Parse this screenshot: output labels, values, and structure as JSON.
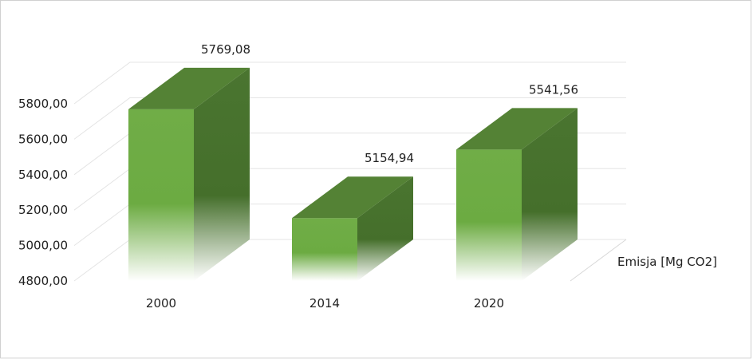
{
  "chart_data": {
    "type": "bar",
    "title": "",
    "xlabel": "",
    "ylabel": "",
    "categories": [
      "2000",
      "2014",
      "2020"
    ],
    "series": [
      {
        "name": "Emisja [Mg CO2]",
        "values": [
          5769.08,
          5154.94,
          5541.56
        ]
      }
    ],
    "value_labels": [
      "5769,08",
      "5154,94",
      "5541,56"
    ],
    "yticks": [
      4800,
      5000,
      5200,
      5400,
      5600,
      5800
    ],
    "ytick_labels": [
      "4800,00",
      "5000,00",
      "5200,00",
      "5400,00",
      "5600,00",
      "5800,00"
    ],
    "ylim": [
      4800,
      5800
    ],
    "grid": true,
    "style": "3d",
    "colors": {
      "front": "#70ad47",
      "top": "#548235",
      "side": "#4a7530",
      "grid": "#e4e4e4"
    }
  }
}
